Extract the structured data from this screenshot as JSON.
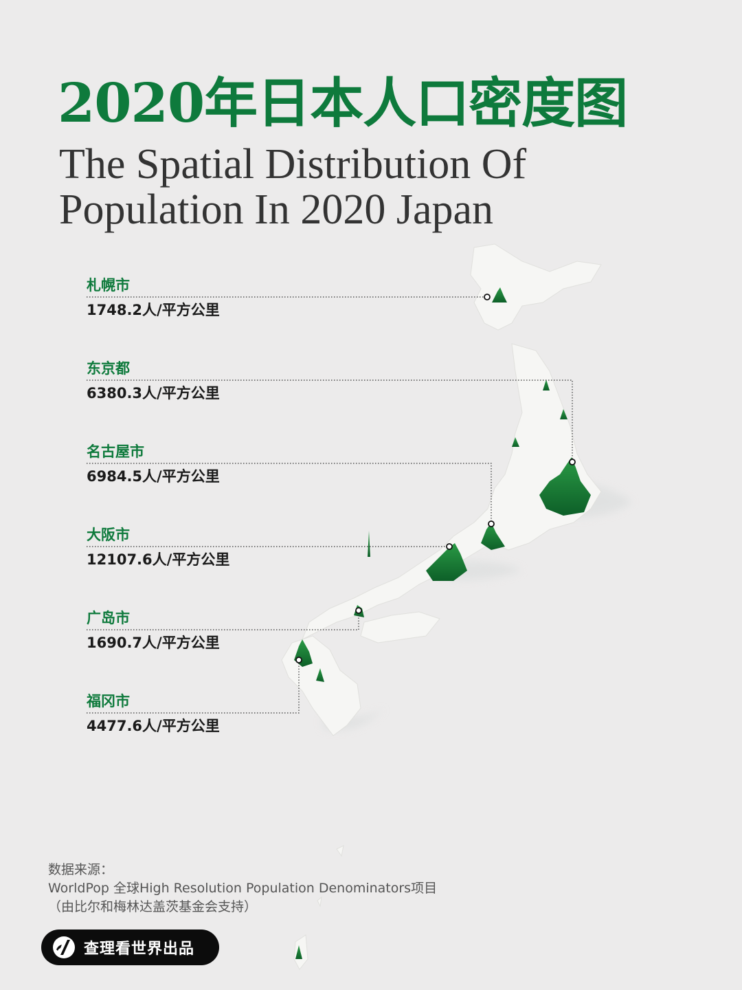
{
  "title_cn": "2020年日本人口密度图",
  "title_en_line1": "The Spatial Distribution Of",
  "title_en_line2": "Population In 2020 Japan",
  "cities": [
    {
      "name": "札幌市",
      "value": "1748.2人/平方公里"
    },
    {
      "name": "东京都",
      "value": "6380.3人/平方公里"
    },
    {
      "name": "名古屋市",
      "value": "6984.5人/平方公里"
    },
    {
      "name": "大阪市",
      "value": "12107.6人/平方公里"
    },
    {
      "name": "广岛市",
      "value": "1690.7人/平方公里"
    },
    {
      "name": "福冈市",
      "value": "4477.6人/平方公里"
    }
  ],
  "source": {
    "line1": "数据来源：",
    "line2": "WorldPop 全球High Resolution Population Denominators项目",
    "line3": "（由比尔和梅林达盖茨基金会支持）"
  },
  "badge": {
    "label": "查理看世界出品",
    "icon": "brand-logo-icon"
  },
  "colors": {
    "accent": "#0e7a3c",
    "land": "#f5f5f3",
    "spike": "#1f8f3a",
    "background": "#ecebeb"
  }
}
